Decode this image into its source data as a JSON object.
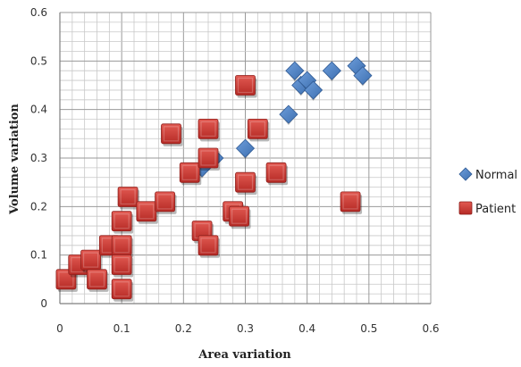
{
  "chart_data": {
    "type": "scatter",
    "title": "",
    "xlabel": "Area variation",
    "ylabel": "Volume variation",
    "xlim": [
      0,
      0.6
    ],
    "ylim": [
      0,
      0.6
    ],
    "xticks": [
      "0",
      "0.1",
      "0.2",
      "0.3",
      "0.4",
      "0.5",
      "0.6"
    ],
    "yticks": [
      "0",
      "0.1",
      "0.2",
      "0.3",
      "0.4",
      "0.5",
      "0.6"
    ],
    "grid": true,
    "legend_position": "right",
    "series": [
      {
        "name": "Normal",
        "marker": "diamond",
        "color": "#4a7ebb",
        "points": [
          [
            0.23,
            0.28
          ],
          [
            0.25,
            0.3
          ],
          [
            0.3,
            0.32
          ],
          [
            0.32,
            0.36
          ],
          [
            0.37,
            0.39
          ],
          [
            0.38,
            0.48
          ],
          [
            0.39,
            0.45
          ],
          [
            0.4,
            0.46
          ],
          [
            0.41,
            0.44
          ],
          [
            0.44,
            0.48
          ],
          [
            0.48,
            0.49
          ],
          [
            0.49,
            0.47
          ]
        ]
      },
      {
        "name": "Patient",
        "marker": "square",
        "color": "#c0312c",
        "points": [
          [
            0.01,
            0.05
          ],
          [
            0.03,
            0.08
          ],
          [
            0.05,
            0.09
          ],
          [
            0.06,
            0.05
          ],
          [
            0.08,
            0.12
          ],
          [
            0.1,
            0.12
          ],
          [
            0.1,
            0.08
          ],
          [
            0.1,
            0.03
          ],
          [
            0.1,
            0.17
          ],
          [
            0.11,
            0.22
          ],
          [
            0.14,
            0.19
          ],
          [
            0.17,
            0.21
          ],
          [
            0.18,
            0.35
          ],
          [
            0.21,
            0.27
          ],
          [
            0.23,
            0.15
          ],
          [
            0.24,
            0.12
          ],
          [
            0.24,
            0.3
          ],
          [
            0.24,
            0.36
          ],
          [
            0.28,
            0.19
          ],
          [
            0.29,
            0.18
          ],
          [
            0.3,
            0.25
          ],
          [
            0.3,
            0.45
          ],
          [
            0.32,
            0.36
          ],
          [
            0.35,
            0.27
          ],
          [
            0.47,
            0.21
          ]
        ]
      }
    ]
  }
}
